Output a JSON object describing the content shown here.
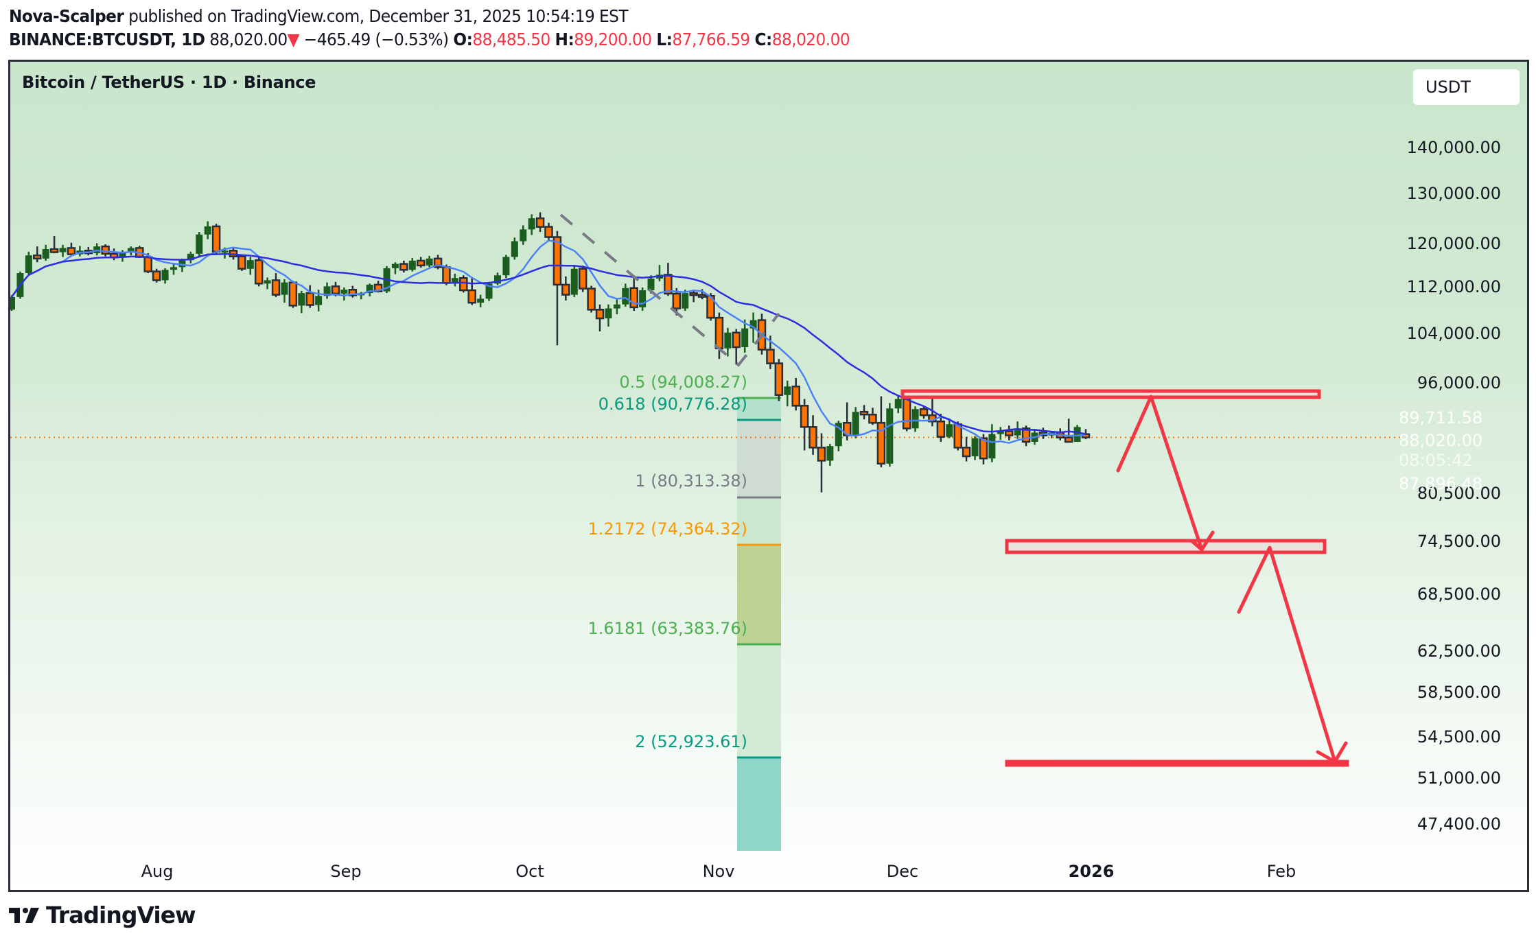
{
  "header": {
    "author": "Nova-Scalper",
    "published_text": " published on TradingView.com, December 31, 2025 10:54:19 EST",
    "symbol": "BINANCE:BTCUSDT, 1D",
    "last": "88,020.00",
    "change_arrow": "▼",
    "change": "−465.49 (−0.53%)",
    "o_label": "O:",
    "o": "88,485.50",
    "h_label": "H:",
    "h": "89,200.00",
    "l_label": "L:",
    "l": "87,766.59",
    "c_label": "C:",
    "c": "88,020.00"
  },
  "chart_title": "Bitcoin / TetherUS · 1D · Binance",
  "currency_button": "USDT",
  "price_tags": {
    "ma_slow": {
      "value": "89,711.58",
      "color": "#2d2ef6"
    },
    "last": {
      "value": "88,020.00",
      "countdown": "08:05:42",
      "color": "#ff7400"
    },
    "ma_fast": {
      "value": "87,896.48",
      "color": "#2f6bff"
    }
  },
  "branding": "TradingView",
  "chart_data": {
    "type": "candlestick",
    "title": "Bitcoin / TetherUS · 1D · Binance",
    "scale": "log",
    "y_ticks": [
      "140,000.00",
      "130,000.00",
      "120,000.00",
      "112,000.00",
      "104,000.00",
      "96,000.00",
      "80,500.00",
      "74,500.00",
      "68,500.00",
      "62,500.00",
      "58,500.00",
      "54,500.00",
      "51,000.00",
      "47,400.00"
    ],
    "y_tick_values": [
      140000,
      130000,
      120000,
      112000,
      104000,
      96000,
      80500,
      74500,
      68500,
      62500,
      58500,
      54500,
      51000,
      47400
    ],
    "x_ticks": [
      {
        "label": "Aug",
        "bold": false
      },
      {
        "label": "Sep",
        "bold": false
      },
      {
        "label": "Oct",
        "bold": false
      },
      {
        "label": "Nov",
        "bold": false
      },
      {
        "label": "Dec",
        "bold": false
      },
      {
        "label": "2026",
        "bold": true
      },
      {
        "label": "Feb",
        "bold": false
      }
    ],
    "last_price": 88020.0,
    "moving_averages": [
      {
        "name": "MA fast",
        "color": "#4c82f7",
        "last": 87896.48
      },
      {
        "name": "MA slow",
        "color": "#2d2ee0",
        "last": 89711.58
      }
    ],
    "candles_ohlc_approx": [
      [
        108000,
        110500,
        107800,
        110200
      ],
      [
        110200,
        114800,
        109900,
        114500
      ],
      [
        114500,
        118500,
        114000,
        117800
      ],
      [
        117800,
        119500,
        116500,
        117200
      ],
      [
        117200,
        119800,
        116800,
        119000
      ],
      [
        119000,
        121500,
        118200,
        118400
      ],
      [
        118400,
        119800,
        117500,
        119200
      ],
      [
        119200,
        120200,
        117900,
        118000
      ],
      [
        118000,
        119600,
        117600,
        118700
      ],
      [
        118700,
        119400,
        117800,
        118200
      ],
      [
        118200,
        120100,
        117800,
        119500
      ],
      [
        119500,
        119900,
        117600,
        118100
      ],
      [
        118100,
        119100,
        116900,
        117400
      ],
      [
        117400,
        118800,
        116600,
        118300
      ],
      [
        118300,
        119500,
        117800,
        119200
      ],
      [
        119200,
        119600,
        117300,
        117500
      ],
      [
        117500,
        118200,
        114500,
        114800
      ],
      [
        114800,
        115300,
        112800,
        113200
      ],
      [
        113200,
        115400,
        112600,
        115100
      ],
      [
        115100,
        116300,
        114200,
        115600
      ],
      [
        115600,
        117200,
        114700,
        116900
      ],
      [
        116900,
        118500,
        116300,
        118100
      ],
      [
        118100,
        122300,
        117400,
        121800
      ],
      [
        121800,
        124400,
        120900,
        123400
      ],
      [
        123400,
        123900,
        118000,
        118500
      ],
      [
        118500,
        119300,
        117200,
        118700
      ],
      [
        118700,
        119200,
        117000,
        117600
      ],
      [
        117600,
        117900,
        114900,
        115300
      ],
      [
        115300,
        117500,
        114200,
        116900
      ],
      [
        116900,
        117600,
        112100,
        112600
      ],
      [
        112600,
        113700,
        111600,
        113200
      ],
      [
        113200,
        114500,
        110200,
        110600
      ],
      [
        110600,
        113400,
        109200,
        112800
      ],
      [
        112800,
        113100,
        108300,
        108700
      ],
      [
        108700,
        111300,
        107400,
        110900
      ],
      [
        110900,
        112300,
        108300,
        108800
      ],
      [
        108800,
        111500,
        107700,
        110400
      ],
      [
        110400,
        112800,
        109900,
        112100
      ],
      [
        112100,
        112900,
        110300,
        110800
      ],
      [
        110800,
        111900,
        109600,
        111500
      ],
      [
        111500,
        112200,
        110100,
        110500
      ],
      [
        110500,
        111100,
        109800,
        110900
      ],
      [
        110900,
        112600,
        110300,
        112400
      ],
      [
        112400,
        113100,
        111000,
        111200
      ],
      [
        111200,
        115800,
        110900,
        115400
      ],
      [
        115400,
        116500,
        114300,
        116200
      ],
      [
        116200,
        116800,
        114600,
        115100
      ],
      [
        115100,
        117300,
        114800,
        116800
      ],
      [
        116800,
        117500,
        115500,
        115900
      ],
      [
        115900,
        117700,
        115600,
        117200
      ],
      [
        117200,
        117900,
        115200,
        115600
      ],
      [
        115600,
        116100,
        112300,
        112700
      ],
      [
        112700,
        114400,
        112100,
        113600
      ],
      [
        113600,
        114100,
        111000,
        111400
      ],
      [
        111400,
        113600,
        108800,
        109200
      ],
      [
        109200,
        110600,
        108400,
        109900
      ],
      [
        109900,
        112900,
        109500,
        112600
      ],
      [
        112600,
        114600,
        112300,
        114100
      ],
      [
        114100,
        117900,
        113600,
        117500
      ],
      [
        117500,
        121200,
        117000,
        120500
      ],
      [
        120500,
        123600,
        119800,
        122800
      ],
      [
        122800,
        125800,
        121700,
        125000
      ],
      [
        125000,
        126200,
        122300,
        123300
      ],
      [
        123300,
        124100,
        120500,
        121300
      ],
      [
        121300,
        122500,
        102000,
        112400
      ],
      [
        112400,
        113900,
        109600,
        110600
      ],
      [
        110600,
        115900,
        110200,
        115300
      ],
      [
        115300,
        115900,
        111100,
        111700
      ],
      [
        111700,
        112200,
        107500,
        108000
      ],
      [
        108000,
        108900,
        104300,
        106500
      ],
      [
        106500,
        108900,
        105100,
        108200
      ],
      [
        108200,
        109800,
        107200,
        108900
      ],
      [
        108900,
        112600,
        108500,
        111800
      ],
      [
        111800,
        113700,
        107800,
        108400
      ],
      [
        108400,
        111900,
        107800,
        111400
      ],
      [
        111400,
        114100,
        110800,
        113500
      ],
      [
        113500,
        116000,
        113000,
        114200
      ],
      [
        114200,
        116400,
        110400,
        110800
      ],
      [
        110800,
        111800,
        107000,
        108200
      ],
      [
        108200,
        111500,
        107800,
        110900
      ],
      [
        110900,
        111500,
        109300,
        110600
      ],
      [
        110600,
        111600,
        109800,
        110400
      ],
      [
        110400,
        110900,
        106100,
        106600
      ],
      [
        106600,
        107500,
        99800,
        101500
      ],
      [
        101500,
        104900,
        100200,
        104100
      ],
      [
        104100,
        104700,
        98900,
        101700
      ],
      [
        101700,
        106300,
        100800,
        104800
      ],
      [
        104800,
        107500,
        102400,
        106200
      ],
      [
        106200,
        107300,
        100500,
        101300
      ],
      [
        101300,
        103600,
        98200,
        99100
      ],
      [
        99100,
        99800,
        93300,
        94200
      ],
      [
        94200,
        96400,
        92500,
        95500
      ],
      [
        95500,
        96800,
        91900,
        92600
      ],
      [
        92600,
        93600,
        86200,
        89500
      ],
      [
        89500,
        91200,
        85600,
        86600
      ],
      [
        86600,
        88600,
        80600,
        84800
      ],
      [
        84800,
        87100,
        84100,
        86800
      ],
      [
        86800,
        90400,
        86100,
        90100
      ],
      [
        90100,
        93100,
        87600,
        88300
      ],
      [
        88300,
        92400,
        87900,
        91700
      ],
      [
        91700,
        92700,
        90600,
        91300
      ],
      [
        91300,
        92300,
        89800,
        90100
      ],
      [
        90100,
        94000,
        83900,
        84400
      ],
      [
        84400,
        93000,
        84000,
        92200
      ],
      [
        92200,
        94200,
        91500,
        93600
      ],
      [
        93600,
        94000,
        88900,
        89300
      ],
      [
        89300,
        92500,
        88800,
        92100
      ],
      [
        92100,
        92600,
        90700,
        91200
      ],
      [
        91200,
        94600,
        89600,
        90300
      ],
      [
        90300,
        91400,
        87400,
        88100
      ],
      [
        88100,
        90500,
        87900,
        89900
      ],
      [
        89900,
        90300,
        86200,
        86600
      ],
      [
        86600,
        88100,
        84700,
        85400
      ],
      [
        85400,
        88200,
        84900,
        87900
      ],
      [
        87900,
        88500,
        84300,
        85100
      ],
      [
        85100,
        89900,
        84600,
        88500
      ],
      [
        88500,
        89500,
        87700,
        88900
      ],
      [
        88900,
        89700,
        87600,
        88300
      ],
      [
        88300,
        90300,
        87800,
        89300
      ],
      [
        89300,
        89700,
        86800,
        87400
      ],
      [
        87400,
        89100,
        87000,
        88700
      ],
      [
        88700,
        89400,
        87800,
        88300
      ],
      [
        88300,
        88900,
        87900,
        88700
      ],
      [
        88700,
        89300,
        87600,
        88000
      ],
      [
        88000,
        90700,
        87500,
        87400
      ],
      [
        87400,
        89800,
        87400,
        89500
      ],
      [
        88485.5,
        89200,
        87766.59,
        88020
      ]
    ],
    "fib_extension": {
      "levels": [
        {
          "ratio": "0.5",
          "price": 94008.27,
          "label": "0.5 (94,008.27)",
          "color": "#4caf50"
        },
        {
          "ratio": "0.618",
          "price": 90776.28,
          "label": "0.618 (90,776.28)",
          "color": "#089981"
        },
        {
          "ratio": "1",
          "price": 80313.38,
          "label": "1 (80,313.38)",
          "color": "#787b86"
        },
        {
          "ratio": "1.2172",
          "price": 74364.32,
          "label": "1.2172 (74,364.32)",
          "color": "#ff9800"
        },
        {
          "ratio": "1.6181",
          "price": 63383.76,
          "label": "1.6181 (63,383.76)",
          "color": "#4caf50"
        },
        {
          "ratio": "2",
          "price": 52923.61,
          "label": "2 (52,923.61)",
          "color": "#089981"
        }
      ]
    },
    "annotations": [
      {
        "type": "rectangle",
        "description": "resistance zone",
        "price_top": 94500,
        "price_bottom": 93300,
        "color": "#f23645"
      },
      {
        "type": "rectangle",
        "description": "target zone 1",
        "price_top": 74800,
        "price_bottom": 73000,
        "color": "#f23645"
      },
      {
        "type": "rectangle",
        "description": "target zone 2",
        "price_top": 53200,
        "price_bottom": 52500,
        "color": "#f23645"
      },
      {
        "type": "path-arrow",
        "description": "projected bounce to resistance then drop to ~74k, bounce, then drop to ~53k",
        "color": "#f23645"
      },
      {
        "type": "dashed-line",
        "description": "ABC projection legs",
        "color": "#787b86"
      }
    ],
    "legend_position": "top-left",
    "grid": false
  }
}
